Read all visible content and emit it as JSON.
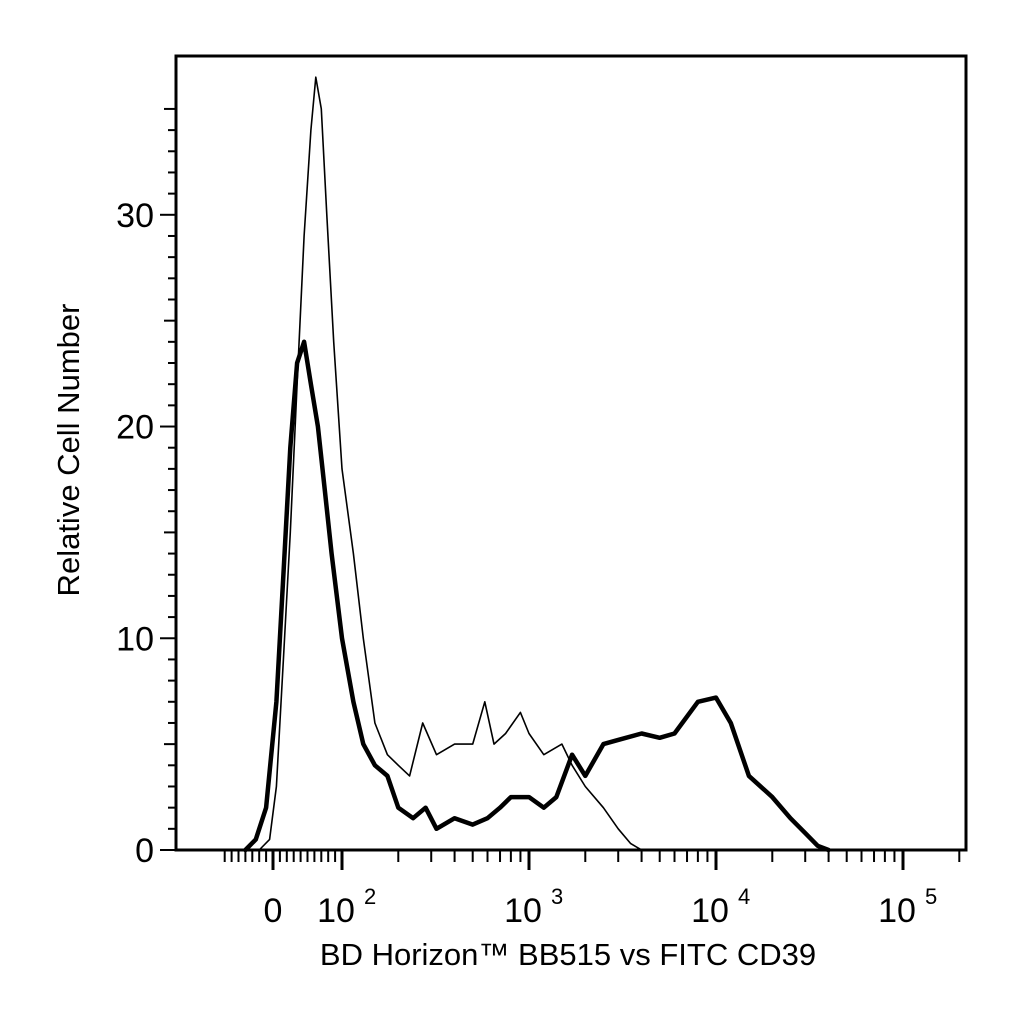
{
  "chart_data": {
    "type": "line",
    "title": "",
    "xlabel": "BD Horizon™ BB515  vs FITC CD39",
    "ylabel": "Relative Cell Number",
    "x_scale": "biexponential",
    "xlim": [
      -70,
      250000
    ],
    "ylim": [
      0,
      37.5
    ],
    "yticks": [
      0,
      10,
      20,
      30
    ],
    "xticks": [
      {
        "value": 0,
        "base": "0",
        "exp": ""
      },
      {
        "value": 100,
        "base": "10",
        "exp": "2"
      },
      {
        "value": 1000,
        "base": "10",
        "exp": "3"
      },
      {
        "value": 10000,
        "base": "10",
        "exp": "4"
      },
      {
        "value": 100000,
        "base": "10",
        "exp": "5"
      }
    ],
    "grid": false,
    "legend": "none",
    "series": [
      {
        "style": "thin",
        "color": "#000000",
        "x": [
          -20,
          -5,
          5,
          15,
          25,
          35,
          45,
          55,
          62,
          70,
          78,
          88,
          100,
          115,
          130,
          150,
          175,
          200,
          230,
          270,
          320,
          400,
          500,
          580,
          650,
          750,
          900,
          1000,
          1200,
          1500,
          1700,
          2000,
          2500,
          3000,
          3500,
          4000,
          4500
        ],
        "y": [
          0,
          0.5,
          3,
          9,
          15,
          22,
          29,
          34,
          36.5,
          35,
          30,
          24,
          18,
          14,
          10,
          6,
          4.5,
          4,
          3.5,
          6,
          4.5,
          5,
          5,
          7,
          5,
          5.5,
          6.5,
          5.5,
          4.5,
          5,
          4,
          3,
          2,
          1,
          0.3,
          0,
          0
        ]
      },
      {
        "style": "thick",
        "color": "#000000",
        "x": [
          -40,
          -25,
          -10,
          5,
          15,
          25,
          35,
          45,
          55,
          65,
          75,
          85,
          100,
          115,
          130,
          150,
          175,
          200,
          240,
          280,
          320,
          400,
          500,
          600,
          700,
          800,
          1000,
          1200,
          1400,
          1700,
          2000,
          2500,
          3000,
          4000,
          5000,
          6000,
          8000,
          10000,
          12000,
          15000,
          20000,
          25000,
          30000,
          35000,
          40000
        ],
        "y": [
          0,
          0.5,
          2,
          7,
          13,
          19,
          23,
          24,
          22,
          20,
          17,
          14,
          10,
          7,
          5,
          4,
          3.5,
          2,
          1.5,
          2,
          1,
          1.5,
          1.2,
          1.5,
          2,
          2.5,
          2.5,
          2,
          2.5,
          4.5,
          3.5,
          5,
          5.2,
          5.5,
          5.3,
          5.5,
          7,
          7.2,
          6,
          3.5,
          2.5,
          1.5,
          0.8,
          0.2,
          0
        ]
      }
    ]
  }
}
